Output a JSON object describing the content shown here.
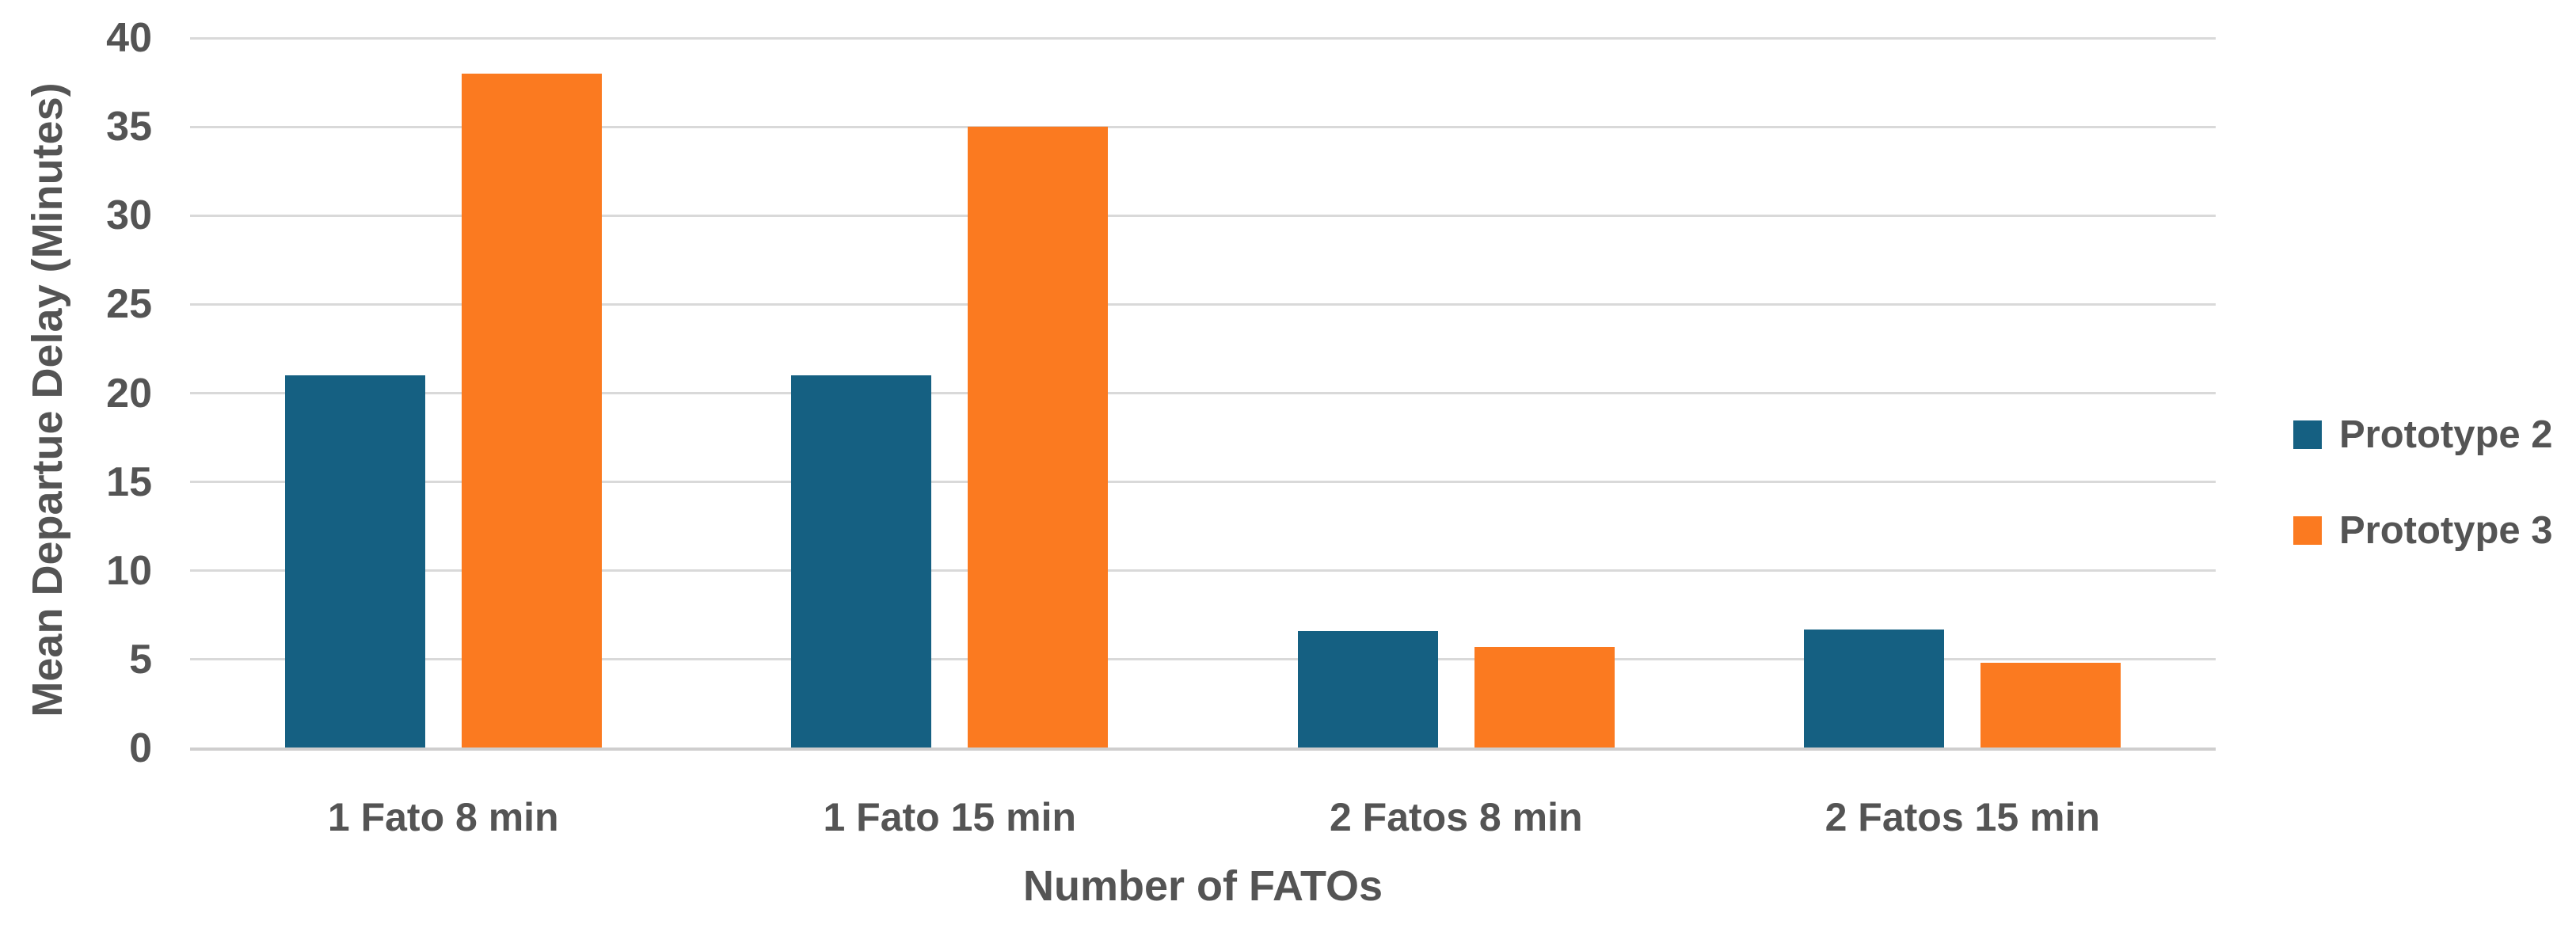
{
  "chart_data": {
    "type": "bar",
    "title": "",
    "categories": [
      "1 Fato 8 min",
      "1 Fato 15 min",
      "2 Fatos 8 min",
      "2 Fatos 15 min"
    ],
    "series": [
      {
        "name": "Prototype 2",
        "color": "#156082",
        "values": [
          21,
          21,
          6.6,
          6.7
        ]
      },
      {
        "name": "Prototype 3",
        "color": "#FB7A20",
        "values": [
          38,
          35,
          5.7,
          4.8
        ]
      }
    ],
    "xlabel": "Number of FATOs",
    "ylabel": "Mean Departue Delay (Minutes)",
    "ylim": [
      0,
      40
    ],
    "yticks": [
      0,
      5,
      10,
      15,
      20,
      25,
      30,
      35,
      40
    ],
    "grid": true,
    "legend_position": "right",
    "colors": {
      "gridline": "#D9D9D9",
      "baseline": "#CFCECE",
      "text": "#545454"
    }
  }
}
